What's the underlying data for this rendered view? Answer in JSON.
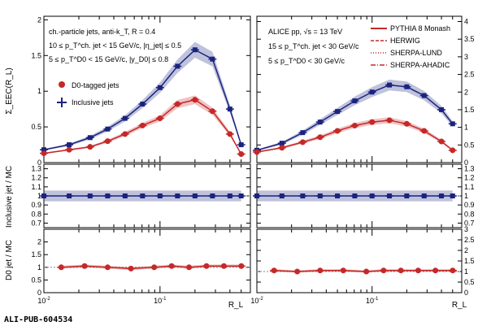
{
  "figure_id": "ALI-PUB-604534",
  "chart_data": [
    {
      "type": "line",
      "panel": "left-top",
      "ylabel": "Σ_EEC(R_L)",
      "xlim": [
        0.01,
        0.6
      ],
      "ylim": [
        0,
        2.05
      ],
      "xscale": "log",
      "yticks": [
        "0",
        "0.5",
        "1",
        "1.5",
        "2"
      ],
      "annotations": [
        "ch.-particle jets, anti-k_T, R = 0.4",
        "10 ≤ p_T^ch. jet < 15 GeV/c, |η_jet| ≤ 0.5",
        "5 ≤ p_T^D0 < 15 GeV/c, |y_D0| ≤ 0.8"
      ],
      "legend": [
        "D0-tagged jets",
        "Inclusive jets"
      ],
      "x": [
        0.01,
        0.0165,
        0.025,
        0.0354,
        0.05,
        0.0707,
        0.1,
        0.1414,
        0.2,
        0.283,
        0.4,
        0.5
      ],
      "series": [
        {
          "name": "Inclusive jets",
          "color": "#1a237e",
          "values": [
            0.18,
            0.25,
            0.35,
            0.47,
            0.62,
            0.82,
            1.05,
            1.35,
            1.58,
            1.45,
            0.75,
            0.25
          ]
        },
        {
          "name": "D0-tagged jets",
          "color": "#c62828",
          "values": [
            0.13,
            0.18,
            0.22,
            0.3,
            0.4,
            0.52,
            0.62,
            0.82,
            0.88,
            0.72,
            0.4,
            0.12
          ]
        }
      ]
    },
    {
      "type": "line",
      "panel": "right-top",
      "xlim": [
        0.01,
        0.6
      ],
      "ylim": [
        0,
        4.15
      ],
      "xscale": "log",
      "yticks": [
        "0",
        "0.5",
        "1",
        "1.5",
        "2",
        "2.5",
        "3",
        "3.5",
        "4"
      ],
      "annotations": [
        "ALICE pp, √s = 13 TeV",
        "15 ≤ p_T^ch. jet < 30 GeV/c",
        "5 ≤ p_T^D0 < 30 GeV/c"
      ],
      "legend": [
        "PYTHIA 8 Monash",
        "HERWIG",
        "SHERPA-LUND",
        "SHERPA-AHADIC"
      ],
      "x": [
        0.01,
        0.0165,
        0.025,
        0.0354,
        0.05,
        0.0707,
        0.1,
        0.1414,
        0.2,
        0.283,
        0.4,
        0.5
      ],
      "series": [
        {
          "name": "Inclusive jets",
          "color": "#1a237e",
          "values": [
            0.35,
            0.55,
            0.85,
            1.15,
            1.45,
            1.75,
            2.0,
            2.2,
            2.15,
            1.9,
            1.5,
            1.1
          ]
        },
        {
          "name": "D0-tagged jets",
          "color": "#c62828",
          "values": [
            0.3,
            0.42,
            0.58,
            0.72,
            0.9,
            1.05,
            1.15,
            1.2,
            1.1,
            0.9,
            0.6,
            0.35
          ]
        }
      ]
    },
    {
      "type": "line",
      "panel": "left-middle",
      "ylabel": "Inclusive jet / MC",
      "ylim": [
        0.65,
        1.35
      ],
      "yticks": [
        "0.7",
        "0.8",
        "0.9",
        "1",
        "1.1",
        "1.2",
        "1.3"
      ],
      "x": [
        0.01,
        0.0165,
        0.025,
        0.0354,
        0.05,
        0.0707,
        0.1,
        0.1414,
        0.2,
        0.283,
        0.4,
        0.5
      ],
      "series": [
        {
          "name": "Inclusive jets",
          "color": "#1a237e",
          "values": [
            1.0,
            1.0,
            1.0,
            1.0,
            1.0,
            1.0,
            1.0,
            1.0,
            1.0,
            1.0,
            1.0,
            1.0
          ]
        }
      ]
    },
    {
      "type": "line",
      "panel": "right-middle",
      "ylim": [
        0.65,
        1.35
      ],
      "yticks": [
        "0.7",
        "0.8",
        "0.9",
        "1",
        "1.1",
        "1.2",
        "1.3"
      ],
      "x": [
        0.01,
        0.0165,
        0.025,
        0.0354,
        0.05,
        0.0707,
        0.1,
        0.1414,
        0.2,
        0.283,
        0.4,
        0.5
      ],
      "series": [
        {
          "name": "Inclusive jets",
          "color": "#1a237e",
          "values": [
            1.0,
            1.0,
            1.0,
            1.0,
            1.0,
            1.0,
            1.0,
            1.0,
            1.0,
            1.0,
            1.0,
            1.0
          ]
        }
      ]
    },
    {
      "type": "line",
      "panel": "left-bottom",
      "ylabel": "D0 jet / MC",
      "xlabel": "R_L",
      "xscale": "log",
      "xlim": [
        0.01,
        0.6
      ],
      "ylim": [
        0,
        2.5
      ],
      "yticks": [
        "0",
        "0.5",
        "1",
        "1.5",
        "2"
      ],
      "xticks": [
        "10^-2",
        "10^-1"
      ],
      "x": [
        0.0141,
        0.0224,
        0.0354,
        0.0562,
        0.0891,
        0.1259,
        0.1778,
        0.2512,
        0.3548,
        0.5012
      ],
      "series": [
        {
          "name": "D0-tagged jets",
          "color": "#c62828",
          "values": [
            1.0,
            1.05,
            1.0,
            0.95,
            1.0,
            1.05,
            1.0,
            1.05,
            1.05,
            1.05
          ]
        }
      ]
    },
    {
      "type": "line",
      "panel": "right-bottom",
      "xlabel": "R_L",
      "xscale": "log",
      "xlim": [
        0.01,
        0.6
      ],
      "ylim": [
        0,
        3
      ],
      "yticks": [
        "0",
        "0.5",
        "1",
        "1.5",
        "2",
        "2.5",
        "3"
      ],
      "xticks": [
        "10^-2",
        "10^-1"
      ],
      "x": [
        0.0141,
        0.0224,
        0.0354,
        0.0562,
        0.0891,
        0.1259,
        0.1778,
        0.2512,
        0.3548,
        0.5012
      ],
      "series": [
        {
          "name": "D0-tagged jets",
          "color": "#c62828",
          "values": [
            1.05,
            1.0,
            1.05,
            1.05,
            1.0,
            1.05,
            1.05,
            1.05,
            1.05,
            1.05
          ]
        }
      ]
    }
  ]
}
